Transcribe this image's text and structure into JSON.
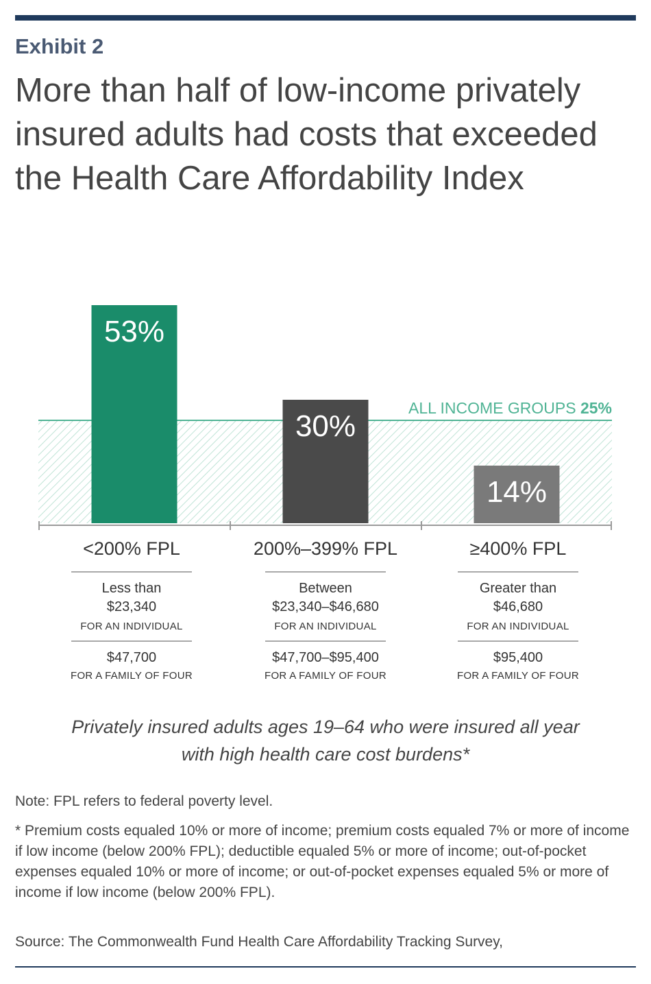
{
  "header": {
    "exhibit": "Exhibit 2",
    "title": "More than half of low-income privately insured adults had costs that exceeded the Health Care Affordability Index"
  },
  "chart_data": {
    "type": "bar",
    "categories": [
      "<200% FPL",
      "200%–399% FPL",
      "≥400% FPL"
    ],
    "values": [
      53,
      30,
      14
    ],
    "value_labels": [
      "53%",
      "30%",
      "14%"
    ],
    "bar_colors": [
      "#1a8c6a",
      "#4a4a4a",
      "#7a7a7a"
    ],
    "ylim": [
      0,
      60
    ],
    "reference_line": {
      "label": "ALL INCOME GROUPS",
      "value_label": "25%",
      "value": 25,
      "color": "#4fb394"
    },
    "grid": false
  },
  "categories_detail": [
    {
      "label": "<200% FPL",
      "line1": "Less than",
      "line2": "$23,340",
      "individual": "FOR AN INDIVIDUAL",
      "family_amount": "$47,700",
      "family": "FOR A FAMILY OF FOUR"
    },
    {
      "label": "200%–399% FPL",
      "line1": "Between",
      "line2": "$23,340–$46,680",
      "individual": "FOR AN INDIVIDUAL",
      "family_amount": "$47,700–$95,400",
      "family": "FOR A FAMILY OF FOUR"
    },
    {
      "label": "≥400% FPL",
      "line1": "Greater than",
      "line2": "$46,680",
      "individual": "FOR AN INDIVIDUAL",
      "family_amount": "$95,400",
      "family": "FOR A FAMILY OF FOUR"
    }
  ],
  "subtitle": {
    "line1": "Privately insured adults ages 19–64 who were insured all year",
    "line2": "with high health care cost burdens*"
  },
  "notes": {
    "fpl": "Note: FPL refers to federal poverty level.",
    "footnote": "* Premium costs equaled 10% or more of income; premium costs equaled 7% or more of income if low income (below 200% FPL); deductible equaled 5% or more of income; out-of-pocket expenses equaled 10% or more of income; or out-of-pocket expenses equaled 5% or more of income if low income (below 200% FPL).",
    "source": "Source: The Commonwealth Fund Health Care Affordability Tracking Survey,"
  }
}
